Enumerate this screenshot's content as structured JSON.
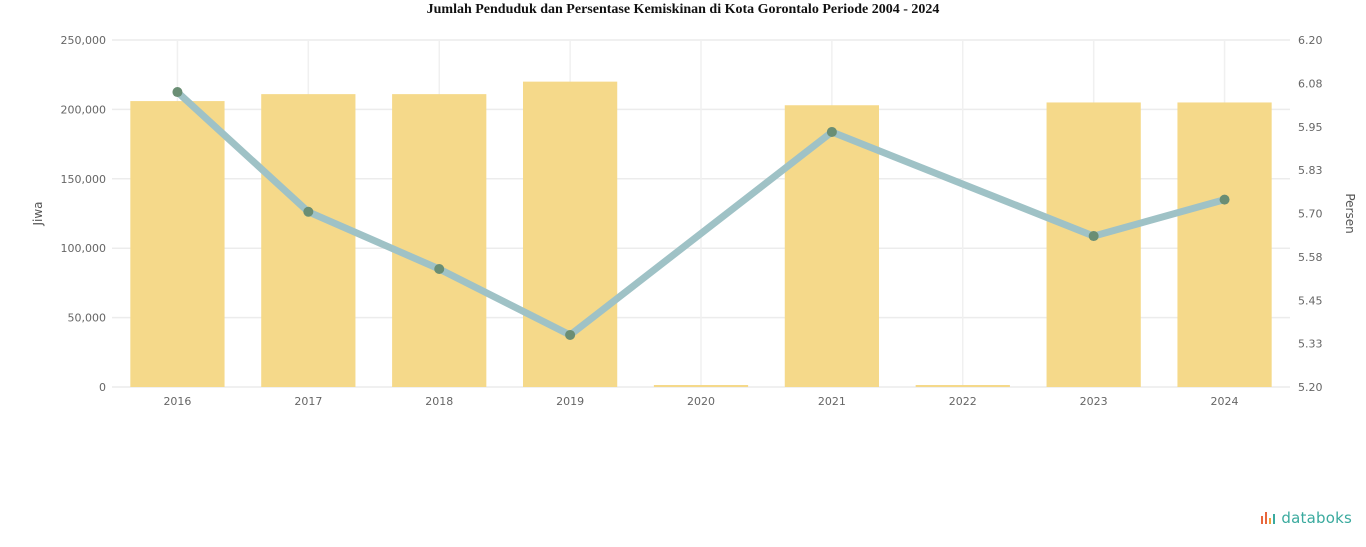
{
  "chart_data": {
    "type": "bar",
    "title": "Jumlah Penduduk dan Persentase Kemiskinan di Kota Gorontalo Periode 2004 - 2024",
    "categories": [
      "2016",
      "2017",
      "2018",
      "2019",
      "2020",
      "2021",
      "2022",
      "2023",
      "2024"
    ],
    "series": [
      {
        "name": "Jiwa",
        "type": "bar",
        "axis": "left",
        "values": [
          206000,
          211000,
          211000,
          220000,
          0,
          203000,
          0,
          205000,
          205000
        ]
      },
      {
        "name": "Persen",
        "type": "line",
        "axis": "right",
        "values": [
          6.05,
          5.705,
          5.54,
          5.35,
          null,
          5.935,
          null,
          5.635,
          5.74
        ]
      }
    ],
    "ylabel": "Jiwa",
    "y2label": "Persen",
    "ylim": [
      0,
      250000
    ],
    "y2lim": [
      5.2,
      6.2
    ],
    "yticks": [
      "0",
      "50,000",
      "100,000",
      "150,000",
      "200,000",
      "250,000"
    ],
    "y2ticks": [
      "5.20",
      "5.33",
      "5.45",
      "5.58",
      "5.70",
      "5.83",
      "5.95",
      "6.08",
      "6.20"
    ],
    "grid": true,
    "colors": {
      "bar": "#f5d98a",
      "line": "#9fc2c6",
      "line_dark": "#6a8e74"
    }
  },
  "brand": {
    "name": "databoks",
    "icon": "databoks-logo-icon"
  }
}
